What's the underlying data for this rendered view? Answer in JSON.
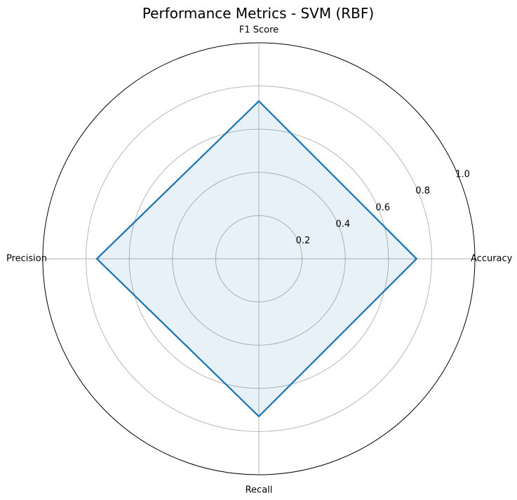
{
  "chart_data": {
    "type": "radar",
    "title": "Performance Metrics - SVM (RBF)",
    "categories": [
      "Accuracy",
      "F1 Score",
      "Precision",
      "Recall"
    ],
    "series": [
      {
        "values": [
          0.73,
          0.73,
          0.75,
          0.73
        ]
      }
    ],
    "rlim": [
      0,
      1.0
    ],
    "radial_ticks": [
      0.2,
      0.4,
      0.6,
      0.8,
      1.0
    ],
    "radial_tick_labels": [
      "0.2",
      "0.4",
      "0.6",
      "0.8",
      "1.0"
    ],
    "grid": true,
    "colors": {
      "line": "#1f77b4",
      "fill": "#1f77b4",
      "grid": "#b0b0b0",
      "outer": "#000000"
    }
  }
}
